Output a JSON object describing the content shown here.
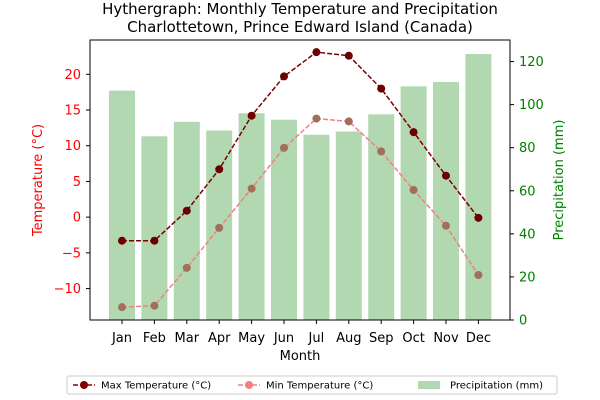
{
  "chart_data": {
    "type": "bar+line",
    "title": "Hythergraph: Monthly Temperature and Precipitation",
    "subtitle": "Charlottetown, Prince Edward Island (Canada)",
    "xlabel": "Month",
    "ylabel_left": "Temperature (°C)",
    "ylabel_right": "Precipitation (mm)",
    "categories": [
      "Jan",
      "Feb",
      "Mar",
      "Apr",
      "May",
      "Jun",
      "Jul",
      "Aug",
      "Sep",
      "Oct",
      "Nov",
      "Dec"
    ],
    "ylim_left": [
      -14.4,
      24.8
    ],
    "ylim_right": [
      0,
      130
    ],
    "yticks_left": [
      -10,
      -5,
      0,
      5,
      10,
      15,
      20
    ],
    "yticks_right": [
      0,
      20,
      40,
      60,
      80,
      100,
      120
    ],
    "yticks_left_labels": [
      "−10",
      "−5",
      "0",
      "5",
      "10",
      "15",
      "20"
    ],
    "series": [
      {
        "name": "Max Temperature (°C)",
        "kind": "line",
        "axis": "left",
        "color": "#800000",
        "values": [
          -3.3,
          -3.3,
          0.9,
          6.7,
          14.2,
          19.7,
          23.1,
          22.6,
          18.0,
          11.9,
          5.8,
          -0.1
        ]
      },
      {
        "name": "Min Temperature (°C)",
        "kind": "line",
        "axis": "left",
        "color": "#f08080",
        "values": [
          -12.6,
          -12.4,
          -7.1,
          -1.5,
          4.0,
          9.7,
          13.8,
          13.4,
          9.2,
          3.8,
          -1.2,
          -8.1
        ]
      },
      {
        "name": "Precipitation (mm)",
        "kind": "bar",
        "axis": "right",
        "color": "#b2d8b2",
        "values": [
          106.5,
          85.3,
          92.0,
          88.0,
          96.0,
          93.0,
          86.0,
          87.5,
          95.5,
          108.5,
          110.5,
          123.5
        ]
      }
    ],
    "legend_position": "bottom",
    "grid": false
  },
  "colors": {
    "left_axis": "#ff0000",
    "right_axis": "#008000"
  }
}
